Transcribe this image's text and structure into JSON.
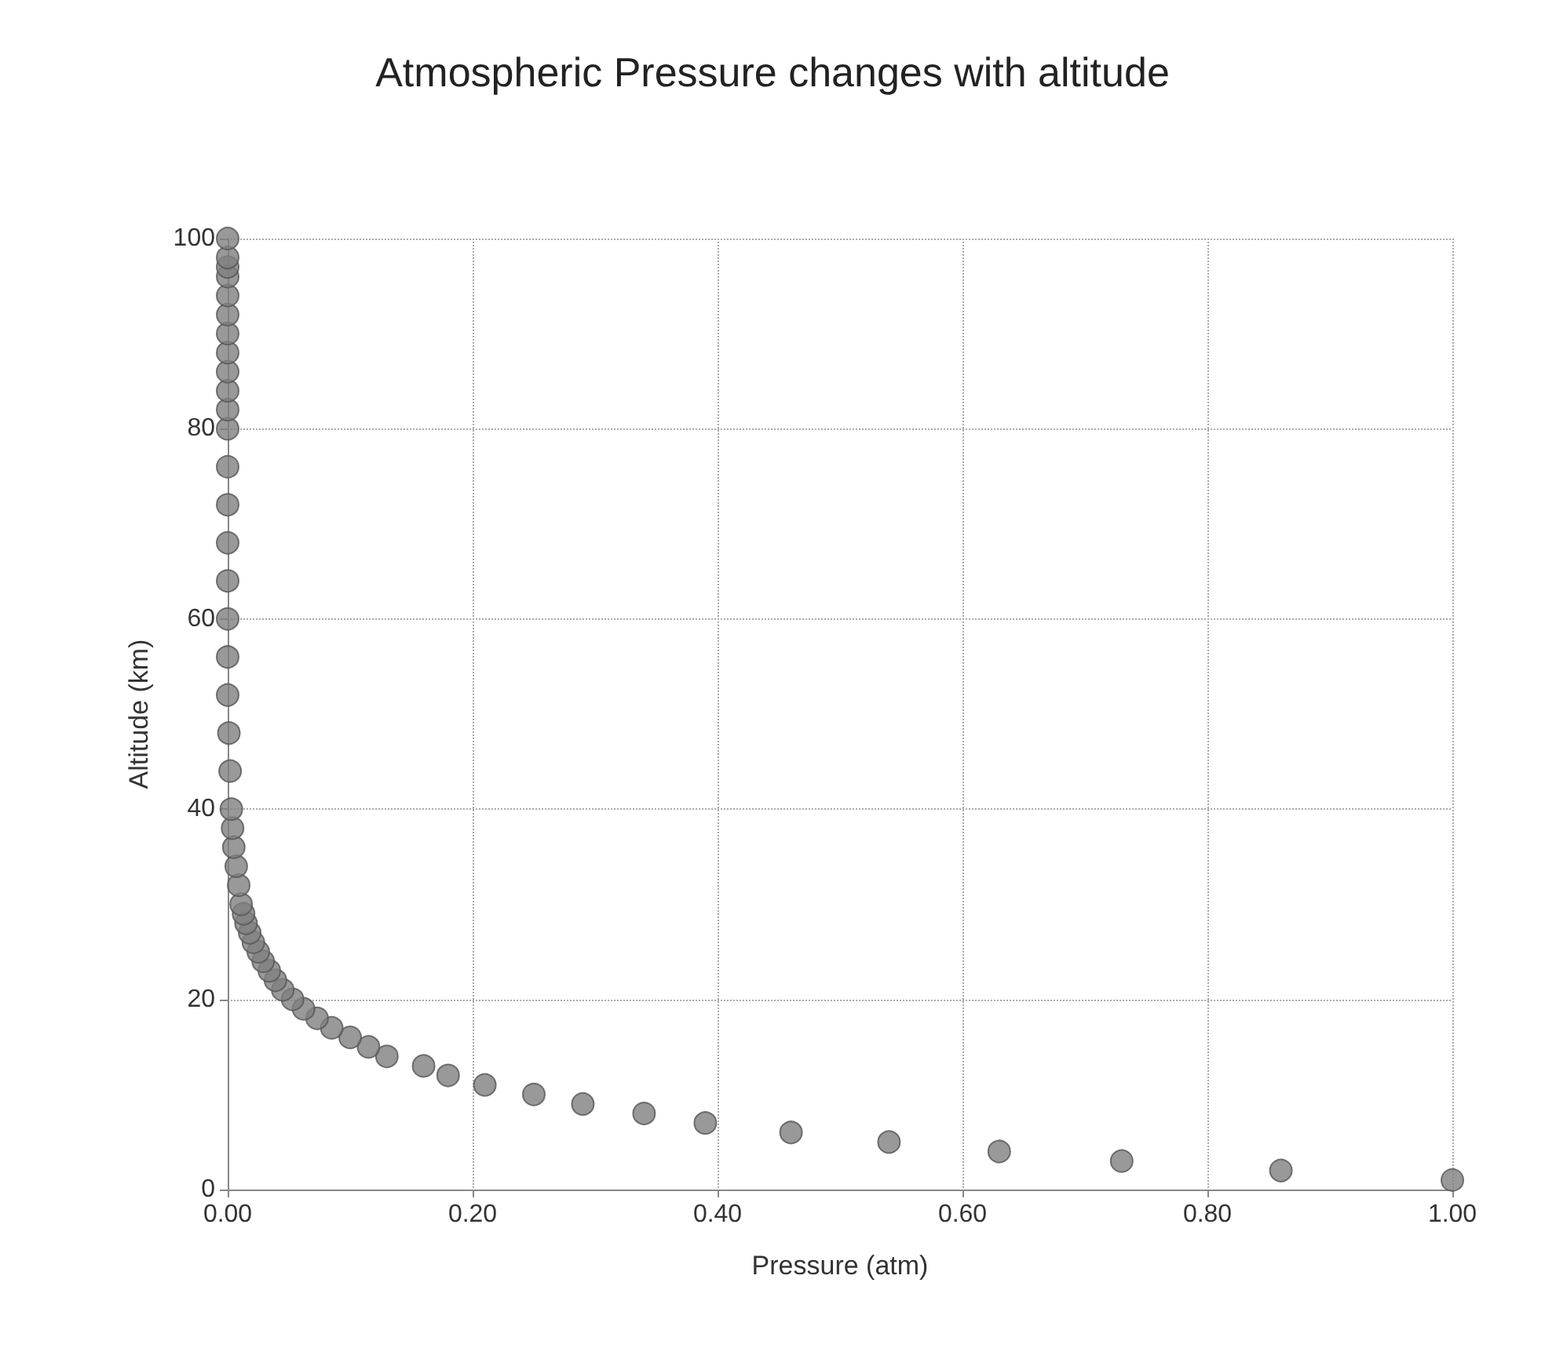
{
  "chart_data": {
    "type": "scatter",
    "title": "Atmospheric Pressure changes with altitude",
    "xlabel": "Pressure (atm)",
    "ylabel": "Altitude (km)",
    "x": [
      1.0,
      0.86,
      0.73,
      0.63,
      0.54,
      0.46,
      0.39,
      0.34,
      0.29,
      0.25,
      0.21,
      0.18,
      0.16,
      0.13,
      0.115,
      0.1,
      0.085,
      0.073,
      0.062,
      0.053,
      0.045,
      0.039,
      0.034,
      0.029,
      0.025,
      0.021,
      0.018,
      0.015,
      0.013,
      0.011,
      0.009,
      0.007,
      0.005,
      0.004,
      0.003,
      0.002,
      0.001,
      0,
      0,
      0,
      0,
      0,
      0,
      0,
      0,
      0,
      0,
      0,
      0,
      0,
      0,
      0,
      0,
      0,
      0,
      0
    ],
    "values": [
      1,
      2,
      3,
      4,
      5,
      6,
      7,
      8,
      9,
      10,
      11,
      12,
      13,
      14,
      15,
      16,
      17,
      18,
      19,
      20,
      21,
      22,
      23,
      24,
      25,
      26,
      27,
      28,
      29,
      30,
      32,
      34,
      36,
      38,
      40,
      44,
      48,
      52,
      56,
      60,
      64,
      68,
      72,
      76,
      80,
      82,
      84,
      86,
      88,
      90,
      92,
      94,
      96,
      97,
      98,
      100
    ],
    "color": "#7f7f7f",
    "marker": "circle",
    "xlim": [
      0,
      1
    ],
    "xticks": [
      {
        "value": 0,
        "label": "0.00"
      },
      {
        "value": 0.2,
        "label": "0.20"
      },
      {
        "value": 0.4,
        "label": "0.40"
      },
      {
        "value": 0.6,
        "label": "0.60"
      },
      {
        "value": 0.8,
        "label": "0.80"
      },
      {
        "value": 1,
        "label": "1.00"
      }
    ],
    "ylim": [
      0,
      100
    ],
    "yticks": [
      0,
      20,
      40,
      60,
      80,
      100
    ],
    "grid": true
  }
}
